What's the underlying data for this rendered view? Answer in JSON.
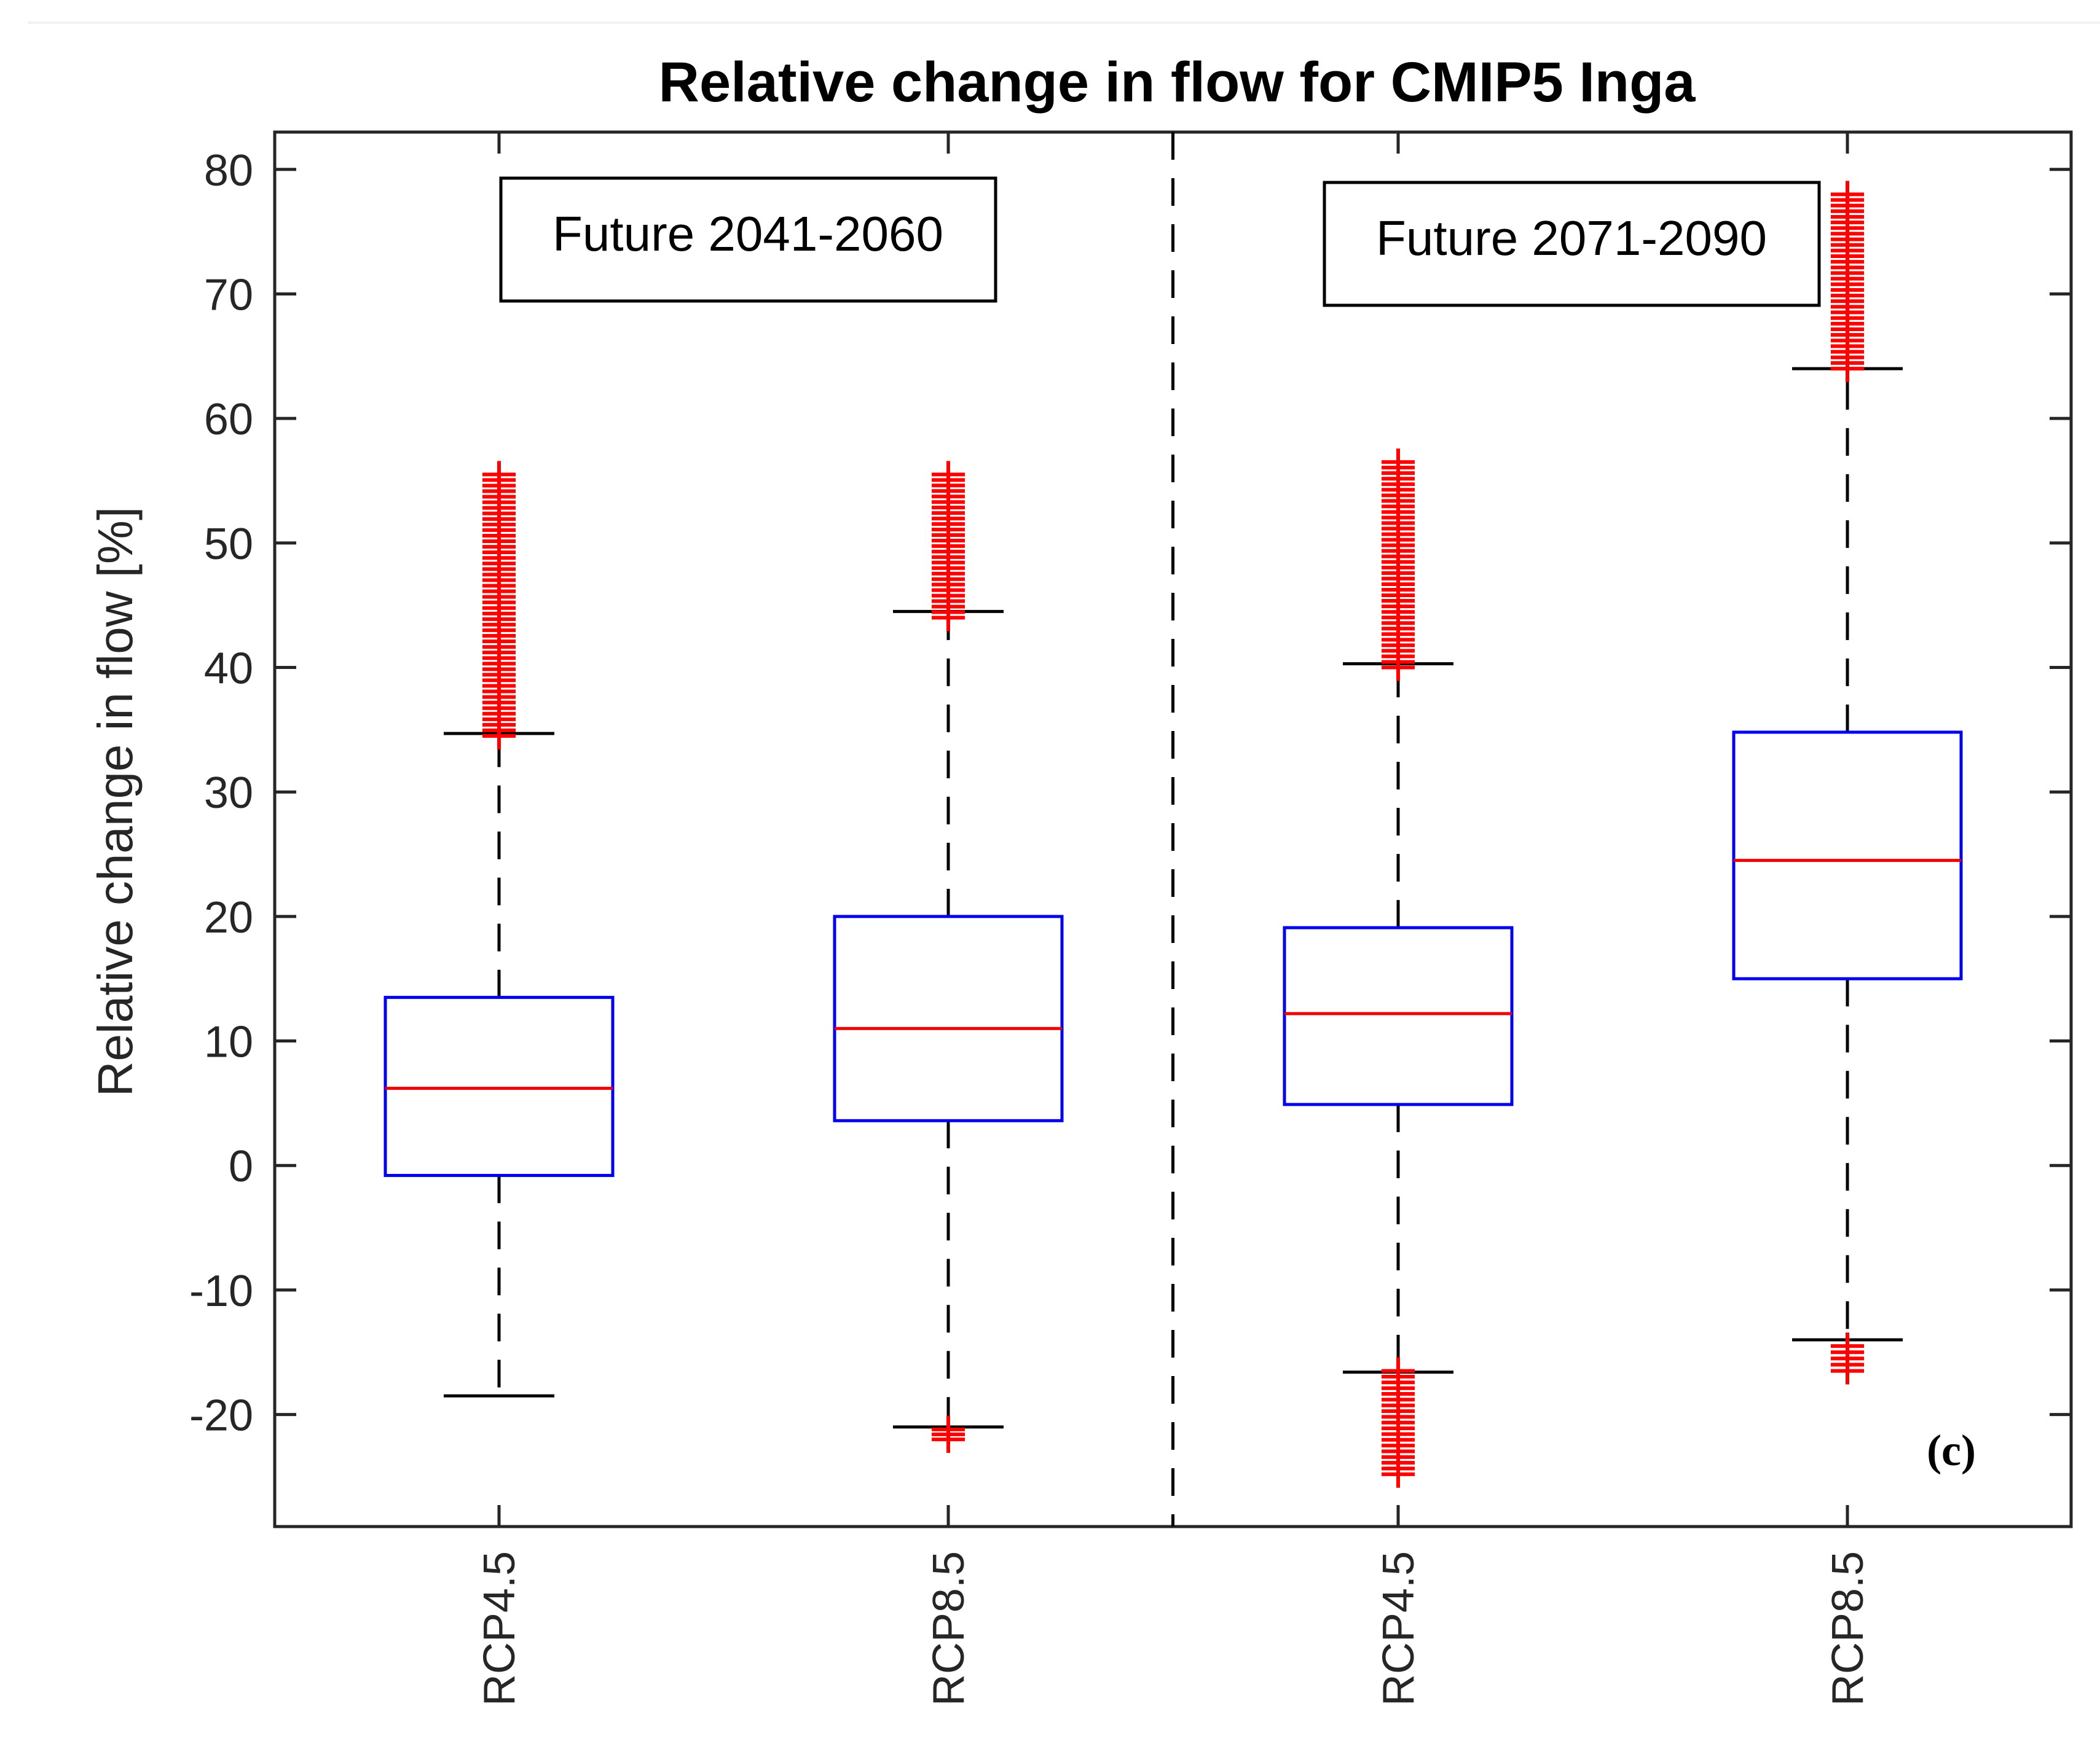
{
  "chart_data": {
    "type": "box",
    "title": "Relative change in flow for CMIP5 Inga",
    "xlabel": "",
    "ylabel": "Relative change in flow [%]",
    "ylim": [
      -29,
      83
    ],
    "yticks": [
      -20,
      -10,
      0,
      10,
      20,
      30,
      40,
      50,
      60,
      70,
      80
    ],
    "categories": [
      "RCP4.5",
      "RCP8.5",
      "RCP4.5",
      "RCP8.5"
    ],
    "groups": [
      {
        "label": "Future 2041-2060",
        "members": [
          0,
          1
        ]
      },
      {
        "label": "Future 2071-2090",
        "members": [
          2,
          3
        ]
      }
    ],
    "panel_label": "(c)",
    "boxes": [
      {
        "name": "RCP4.5",
        "period": "Future 2041-2060",
        "q1": -0.8,
        "median": 6.2,
        "q3": 13.5,
        "whisker_low": -18.5,
        "whisker_high": 34.7,
        "outliers_high_range": [
          34.5,
          55.5
        ],
        "outliers_low_range": []
      },
      {
        "name": "RCP8.5",
        "period": "Future 2041-2060",
        "q1": 3.6,
        "median": 11.0,
        "q3": 20.0,
        "whisker_low": -21.0,
        "whisker_high": 44.5,
        "outliers_high_range": [
          44.0,
          55.5
        ],
        "outliers_low_range": [
          -22.0,
          -21.2
        ]
      },
      {
        "name": "RCP4.5",
        "period": "Future 2071-2090",
        "q1": 4.9,
        "median": 12.2,
        "q3": 19.1,
        "whisker_low": -16.6,
        "whisker_high": 40.3,
        "outliers_high_range": [
          40.0,
          56.5
        ],
        "outliers_low_range": [
          -24.8,
          -16.5
        ]
      },
      {
        "name": "RCP8.5",
        "period": "Future 2071-2090",
        "q1": 15.0,
        "median": 24.5,
        "q3": 34.8,
        "whisker_low": -14.0,
        "whisker_high": 64.0,
        "outliers_high_range": [
          64.0,
          78.0
        ],
        "outliers_low_range": [
          -16.5,
          -14.5
        ]
      }
    ],
    "colors": {
      "box": "#0000ee",
      "median": "#ee0000",
      "outlier": "#ff0000",
      "whisker": "#000000",
      "axis": "#262626"
    }
  }
}
